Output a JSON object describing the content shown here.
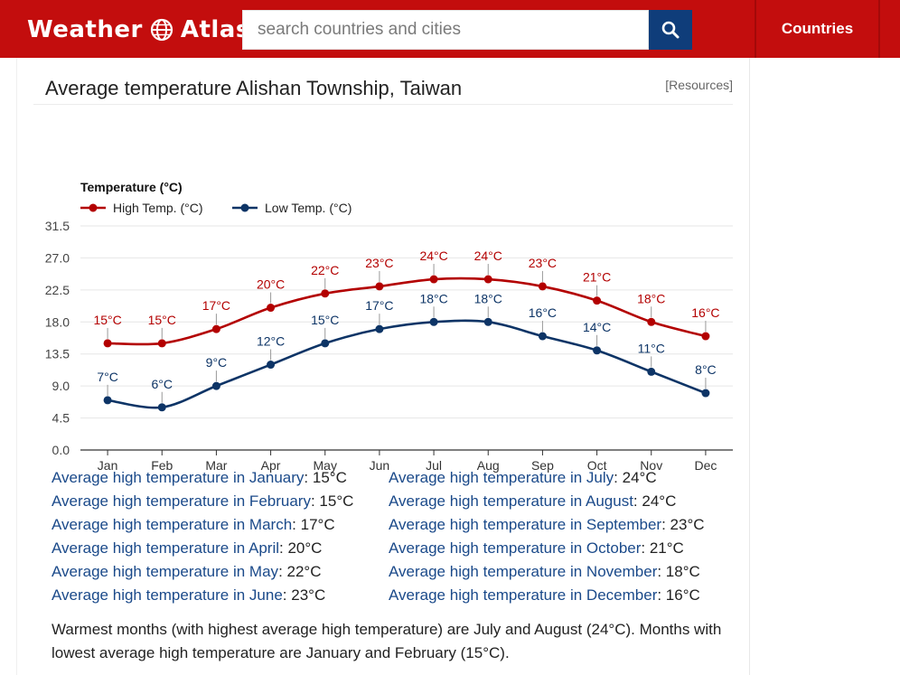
{
  "header": {
    "logo_left": "Weather",
    "logo_right": "Atlas",
    "search_placeholder": "search countries and cities",
    "nav_countries": "Countries",
    "colors": {
      "bar": "#c30d0d",
      "search_button": "#0f3d7a"
    }
  },
  "page": {
    "title": "Average temperature Alishan Township, Taiwan",
    "resources_link": "[Resources]"
  },
  "chart_data": {
    "type": "line",
    "title": "Temperature (°C)",
    "categories": [
      "Jan",
      "Feb",
      "Mar",
      "Apr",
      "May",
      "Jun",
      "Jul",
      "Aug",
      "Sep",
      "Oct",
      "Nov",
      "Dec"
    ],
    "y_ticks": [
      "31.5",
      "27.0",
      "22.5",
      "18.0",
      "13.5",
      "9.0",
      "4.5",
      "0.0"
    ],
    "ylim": [
      0,
      31.5
    ],
    "grid": true,
    "legend_position": "top-left",
    "series": [
      {
        "name": "High Temp. (°C)",
        "color": "#b30000",
        "values": [
          15,
          15,
          17,
          20,
          22,
          23,
          24,
          24,
          23,
          21,
          18,
          16
        ],
        "labels": [
          "15°C",
          "15°C",
          "17°C",
          "20°C",
          "22°C",
          "23°C",
          "24°C",
          "24°C",
          "23°C",
          "21°C",
          "18°C",
          "16°C"
        ]
      },
      {
        "name": "Low Temp. (°C)",
        "color": "#0d3466",
        "values": [
          7,
          6,
          9,
          12,
          15,
          17,
          18,
          18,
          16,
          14,
          11,
          8
        ],
        "labels": [
          "7°C",
          "6°C",
          "9°C",
          "12°C",
          "15°C",
          "17°C",
          "18°C",
          "18°C",
          "16°C",
          "14°C",
          "11°C",
          "8°C"
        ]
      }
    ]
  },
  "stats": {
    "left": [
      {
        "label": "Average high temperature in January",
        "value": ": 15°C"
      },
      {
        "label": "Average high temperature in February",
        "value": ": 15°C"
      },
      {
        "label": "Average high temperature in March",
        "value": ": 17°C"
      },
      {
        "label": "Average high temperature in April",
        "value": ": 20°C"
      },
      {
        "label": "Average high temperature in May",
        "value": ": 22°C"
      },
      {
        "label": "Average high temperature in June",
        "value": ": 23°C"
      }
    ],
    "right": [
      {
        "label": "Average high temperature in July",
        "value": ": 24°C"
      },
      {
        "label": "Average high temperature in August",
        "value": ": 24°C"
      },
      {
        "label": "Average high temperature in September",
        "value": ": 23°C"
      },
      {
        "label": "Average high temperature in October",
        "value": ": 21°C"
      },
      {
        "label": "Average high temperature in November",
        "value": ": 18°C"
      },
      {
        "label": "Average high temperature in December",
        "value": ": 16°C"
      }
    ]
  },
  "summary": "Warmest months (with highest average high temperature) are July and August (24°C). Months with lowest average high temperature are January and February (15°C)."
}
